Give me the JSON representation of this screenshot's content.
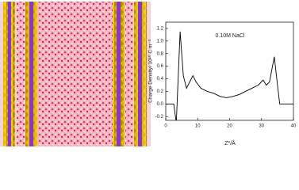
{
  "chart_data": {
    "type": "line",
    "title": "0.10M NaCl",
    "xlabel": "Z*/Å",
    "ylabel": "Charge Density/ 10¹⁰ C m⁻³",
    "x": [
      0,
      2.5,
      3.3,
      4.5,
      5.5,
      6.5,
      7.5,
      8.5,
      9.5,
      11,
      13,
      15,
      17,
      19,
      21,
      23,
      25,
      27,
      29,
      30.5,
      31.5,
      32.5,
      34,
      35,
      35.7,
      36.5,
      40
    ],
    "series": [
      {
        "name": "0.10M NaCl",
        "color": "#000000",
        "values": [
          0,
          0,
          -0.3,
          1.15,
          0.45,
          0.25,
          0.35,
          0.45,
          0.35,
          0.25,
          0.2,
          0.17,
          0.12,
          0.1,
          0.12,
          0.15,
          0.2,
          0.25,
          0.3,
          0.38,
          0.3,
          0.35,
          0.75,
          0.3,
          0,
          0,
          0
        ]
      }
    ],
    "xlim": [
      0,
      40
    ],
    "xticks": [
      0,
      10,
      20,
      30,
      40
    ],
    "ylim": [
      -0.26,
      1.3
    ],
    "yticks": [
      -0.2,
      {
        "value": 0,
        "label": "0.0"
      },
      0.2,
      0.4,
      0.6,
      0.8,
      {
        "value": 1,
        "label": "1.0"
      },
      1.2
    ]
  }
}
